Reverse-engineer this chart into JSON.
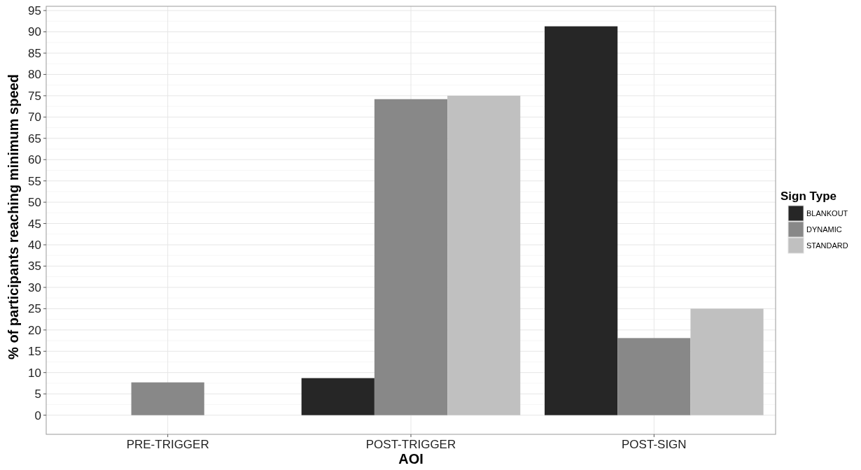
{
  "chart_data": {
    "type": "bar",
    "xlabel": "AOI",
    "ylabel": "% of participants reaching minimum speed",
    "legend_title": "Sign Type",
    "categories": [
      "PRE-TRIGGER",
      "POST-TRIGGER",
      "POST-SIGN"
    ],
    "series": [
      {
        "name": "BLANKOUT",
        "color": "#262626",
        "values": [
          0,
          8.7,
          91.3
        ]
      },
      {
        "name": "DYNAMIC",
        "color": "#888888",
        "values": [
          7.7,
          74.2,
          18.1
        ]
      },
      {
        "name": "STANDARD",
        "color": "#c0c0c0",
        "values": [
          0,
          75.0,
          25.0
        ]
      }
    ],
    "ylim": [
      -4.5,
      96
    ],
    "yticks": [
      0,
      5,
      10,
      15,
      20,
      25,
      30,
      35,
      40,
      45,
      50,
      55,
      60,
      65,
      70,
      75,
      80,
      85,
      90,
      95
    ],
    "grid": true,
    "legend": "right"
  }
}
